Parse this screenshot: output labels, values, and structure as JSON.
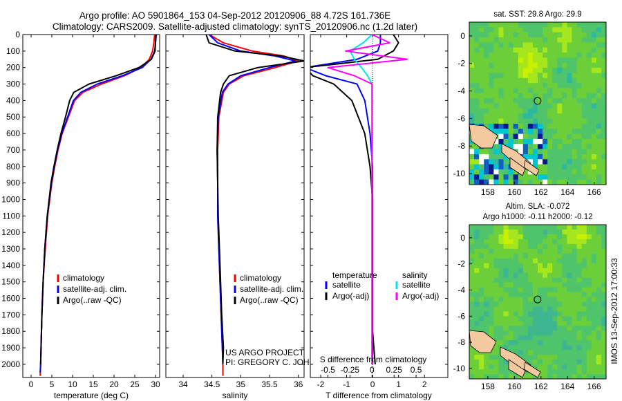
{
  "header": {
    "title_line1": "Argo profile: AO 5901864_153 04-Sep-2012 20120906_88 4.72S 161.736E",
    "title_line2": "Climatology: CARS2009. Satellite-adjusted climatology: synTS_20120906.nc (1.2d later)"
  },
  "credits": {
    "line1": "US ARGO PROJECT",
    "line2": "PI: GREGORY C. JOHNSON",
    "side_stamp": "IMOS 13-Sep-2012 17:00:33"
  },
  "colors": {
    "climatology": "#ff0000",
    "satellite": "#0000ff",
    "argo": "#000000",
    "sal_satellite": "#00e5ee",
    "sal_argo": "#ff00ff",
    "map_high": "#c9f000",
    "map_mid": "#6ccf3a",
    "map_low": "#2fb8a0",
    "land": "#f4c9a0"
  },
  "chart_data": [
    {
      "type": "line",
      "name": "temperature-profile",
      "xlabel": "temperature (deg C)",
      "ylabel": "",
      "xlim": [
        -2,
        31
      ],
      "ylim": [
        2080,
        0
      ],
      "xticks": [
        0,
        5,
        10,
        15,
        20,
        25,
        30
      ],
      "yticks": [
        0,
        100,
        200,
        300,
        400,
        500,
        600,
        700,
        800,
        900,
        1000,
        1100,
        1200,
        1300,
        1400,
        1500,
        1600,
        1700,
        1800,
        1900,
        2000
      ],
      "legend": [
        "climatology",
        "satellite-adj. clim.",
        "Argo(..raw -QC)"
      ],
      "legend_location": "lower-center",
      "series": [
        {
          "name": "climatology",
          "color": "#ff0000",
          "x": [
            29.8,
            29.6,
            29.3,
            28.5,
            26.5,
            22.5,
            17.0,
            12.5,
            10.5,
            9.0,
            7.5,
            6.5,
            5.7,
            5.0,
            4.0,
            3.4,
            2.9,
            2.6,
            2.4,
            2.3,
            2.2,
            2.2
          ],
          "y": [
            0,
            50,
            100,
            150,
            200,
            250,
            300,
            350,
            400,
            500,
            600,
            700,
            800,
            900,
            1100,
            1300,
            1500,
            1700,
            1900,
            2000,
            2050,
            2070
          ]
        },
        {
          "name": "satellite-adj. clim.",
          "color": "#0000ff",
          "x": [
            30.2,
            30.0,
            29.8,
            28.9,
            26.8,
            22.0,
            16.0,
            12.0,
            10.2,
            8.8,
            7.4,
            6.4,
            5.6,
            4.9,
            3.9,
            3.3,
            2.9,
            2.6,
            2.4,
            2.3,
            2.2
          ],
          "y": [
            0,
            50,
            100,
            150,
            200,
            250,
            300,
            350,
            400,
            500,
            600,
            700,
            800,
            900,
            1100,
            1300,
            1500,
            1700,
            1900,
            2000,
            2050
          ]
        },
        {
          "name": "Argo(..raw -QC)",
          "color": "#000000",
          "x": [
            30.1,
            30.0,
            29.9,
            29.0,
            26.0,
            20.5,
            14.0,
            10.3,
            9.3,
            8.3,
            7.2,
            6.3,
            5.5,
            4.8,
            3.9,
            3.3,
            2.9,
            2.6,
            2.4,
            2.3
          ],
          "y": [
            0,
            50,
            100,
            150,
            200,
            250,
            300,
            350,
            400,
            500,
            600,
            700,
            800,
            900,
            1100,
            1300,
            1500,
            1700,
            1900,
            2000
          ]
        }
      ]
    },
    {
      "type": "line",
      "name": "salinity-profile",
      "xlabel": "salinity",
      "xlim": [
        33.7,
        36.1
      ],
      "ylim": [
        2080,
        0
      ],
      "xticks": [
        34,
        34.5,
        35,
        35.5,
        36
      ],
      "legend": [
        "climatology",
        "satellite-adj. clim.",
        "Argo(..raw -QC)"
      ],
      "legend_location": "lower-right",
      "series": [
        {
          "name": "climatology",
          "color": "#ff0000",
          "x": [
            34.45,
            34.7,
            35.2,
            35.75,
            36.0,
            35.6,
            35.05,
            34.8,
            34.7,
            34.62,
            34.6,
            34.6,
            34.6,
            34.62,
            34.64,
            34.66,
            34.68,
            34.69,
            34.69
          ],
          "y": [
            0,
            50,
            100,
            130,
            160,
            200,
            250,
            300,
            350,
            500,
            700,
            900,
            1100,
            1300,
            1500,
            1700,
            1900,
            2000,
            2070
          ]
        },
        {
          "name": "satellite-adj. clim.",
          "color": "#0000ff",
          "x": [
            34.45,
            34.6,
            35.0,
            35.6,
            35.95,
            35.5,
            35.0,
            34.78,
            34.68,
            34.61,
            34.59,
            34.6,
            34.6,
            34.62,
            34.64,
            34.66,
            34.68,
            34.69
          ],
          "y": [
            0,
            50,
            100,
            130,
            160,
            200,
            250,
            300,
            350,
            500,
            700,
            900,
            1100,
            1300,
            1500,
            1700,
            1900,
            2000
          ]
        },
        {
          "name": "Argo(..raw -QC)",
          "color": "#000000",
          "x": [
            34.4,
            34.45,
            34.9,
            35.7,
            36.1,
            35.3,
            34.8,
            34.7,
            34.65,
            34.6,
            34.59,
            34.6,
            34.61,
            34.63,
            34.65,
            34.67,
            34.7,
            34.69
          ],
          "y": [
            0,
            50,
            100,
            130,
            160,
            200,
            250,
            300,
            350,
            500,
            700,
            900,
            1100,
            1300,
            1500,
            1700,
            1900,
            2000
          ]
        }
      ]
    },
    {
      "type": "line",
      "name": "difference-profile",
      "xlabel": "T difference from climatology",
      "xlabel_top": "S difference from climatology",
      "xlim": [
        -2.4,
        2.9
      ],
      "ylim": [
        2080,
        0
      ],
      "xticks": [
        -2,
        -1,
        0,
        1,
        2
      ],
      "s_xlim": [
        -0.7,
        0.86
      ],
      "s_xticks": [
        -0.5,
        -0.25,
        0,
        0.25,
        0.5
      ],
      "s_xtick_labels": [
        "-0.5",
        "-0.25",
        "0",
        "0.25",
        "0.5"
      ],
      "legend_t_title": "temperature",
      "legend_s_title": "salinity",
      "legend_t": [
        "satellite",
        "Argo(-adj)"
      ],
      "legend_s": [
        "satellite",
        "Argo(-adj)"
      ],
      "series_t": [
        {
          "name": "T satellite",
          "color": "#0000ff",
          "x": [
            0.3,
            0.3,
            0.2,
            -0.6,
            -2.6,
            -1.8,
            -0.6,
            -0.3,
            -0.1,
            0.0,
            0.0,
            0.0,
            0.0,
            0.0
          ],
          "y": [
            0,
            50,
            100,
            150,
            200,
            250,
            300,
            400,
            600,
            800,
            1000,
            1400,
            1800,
            2000
          ]
        },
        {
          "name": "T Argo(-adj)",
          "color": "#000000",
          "x": [
            0.8,
            1.0,
            0.8,
            0.2,
            -2.6,
            -2.3,
            -1.5,
            -0.8,
            -0.3,
            -0.1,
            0.0,
            0.0,
            0.0,
            0.1
          ],
          "y": [
            0,
            50,
            100,
            150,
            200,
            250,
            300,
            400,
            600,
            800,
            1000,
            1400,
            1800,
            2000
          ]
        }
      ],
      "series_s": [
        {
          "name": "S satellite",
          "color": "#00e5ee",
          "x": [
            0.0,
            -0.1,
            -0.25,
            -0.2,
            -0.12,
            -0.05,
            0.0,
            0.0,
            0.0,
            0.0,
            0.0,
            0.0
          ],
          "y": [
            0,
            50,
            100,
            150,
            200,
            250,
            300,
            400,
            600,
            1000,
            1500,
            2000
          ]
        },
        {
          "name": "S Argo(-adj)",
          "color": "#ff00ff",
          "x": [
            0.0,
            0.2,
            -0.3,
            0.4,
            -0.5,
            -0.2,
            0.0,
            0.0,
            0.0,
            0.0,
            0.0,
            0.0
          ],
          "y": [
            0,
            50,
            100,
            150,
            200,
            250,
            300,
            400,
            600,
            1000,
            1500,
            2000
          ]
        }
      ]
    },
    {
      "type": "heatmap",
      "name": "sst-map",
      "title": "sat. SST: 29.8  Argo: 29.9",
      "xlim": [
        156.6,
        166.9
      ],
      "ylim": [
        -10.8,
        1.0
      ],
      "xticks": [
        158,
        160,
        162,
        164,
        166
      ],
      "yticks": [
        0,
        -2,
        -4,
        -6,
        -8,
        -10
      ],
      "marker": {
        "x": 161.74,
        "y": -4.72
      }
    },
    {
      "type": "heatmap",
      "name": "sla-map",
      "title_line1": "Altim. SLA: -0.072",
      "title_line2": "Argo h1000: -0.11  h2000: -0.12",
      "xlim": [
        156.6,
        166.9
      ],
      "ylim": [
        -10.8,
        1.0
      ],
      "xticks": [
        158,
        160,
        162,
        164,
        166
      ],
      "yticks": [
        0,
        -2,
        -4,
        -6,
        -8,
        -10
      ],
      "marker": {
        "x": 161.74,
        "y": -4.72
      }
    }
  ]
}
